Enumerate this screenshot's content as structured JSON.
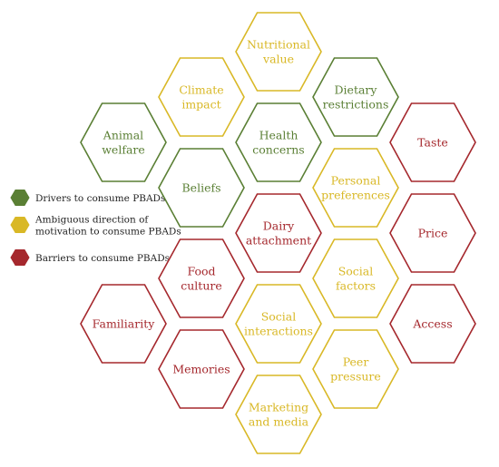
{
  "colors": {
    "driver": "#5a7f34",
    "ambiguous": "#d9b826",
    "barrier": "#a5282d"
  },
  "legend": [
    {
      "category": "driver",
      "lines": [
        "Drivers to consume PBADs"
      ]
    },
    {
      "category": "ambiguous",
      "lines": [
        "Ambiguous direction of",
        "motivation to consume PBADs"
      ]
    },
    {
      "category": "barrier",
      "lines": [
        "Barriers to consume PBADs"
      ]
    }
  ],
  "hexagons": [
    {
      "id": "nutritional-value",
      "category": "ambiguous",
      "lines": [
        "Nutritional",
        "value"
      ]
    },
    {
      "id": "climate-impact",
      "category": "ambiguous",
      "lines": [
        "Climate",
        "impact"
      ]
    },
    {
      "id": "dietary-restrictions",
      "category": "driver",
      "lines": [
        "Dietary",
        "restrictions"
      ]
    },
    {
      "id": "animal-welfare",
      "category": "driver",
      "lines": [
        "Animal",
        "welfare"
      ]
    },
    {
      "id": "health-concerns",
      "category": "driver",
      "lines": [
        "Health",
        "concerns"
      ]
    },
    {
      "id": "taste",
      "category": "barrier",
      "lines": [
        "Taste"
      ]
    },
    {
      "id": "beliefs",
      "category": "driver",
      "lines": [
        "Beliefs"
      ]
    },
    {
      "id": "personal-preferences",
      "category": "ambiguous",
      "lines": [
        "Personal",
        "preferences"
      ]
    },
    {
      "id": "dairy-attachment",
      "category": "barrier",
      "lines": [
        "Dairy",
        "attachment"
      ]
    },
    {
      "id": "price",
      "category": "barrier",
      "lines": [
        "Price"
      ]
    },
    {
      "id": "food-culture",
      "category": "barrier",
      "lines": [
        "Food",
        "culture"
      ]
    },
    {
      "id": "social-factors",
      "category": "ambiguous",
      "lines": [
        "Social",
        "factors"
      ]
    },
    {
      "id": "familiarity",
      "category": "barrier",
      "lines": [
        "Familiarity"
      ]
    },
    {
      "id": "social-interactions",
      "category": "ambiguous",
      "lines": [
        "Social",
        "interactions"
      ]
    },
    {
      "id": "access",
      "category": "barrier",
      "lines": [
        "Access"
      ]
    },
    {
      "id": "memories",
      "category": "barrier",
      "lines": [
        "Memories"
      ]
    },
    {
      "id": "peer-pressure",
      "category": "ambiguous",
      "lines": [
        "Peer",
        "pressure"
      ]
    },
    {
      "id": "marketing-and-media",
      "category": "ambiguous",
      "lines": [
        "Marketing",
        "and media"
      ]
    }
  ]
}
